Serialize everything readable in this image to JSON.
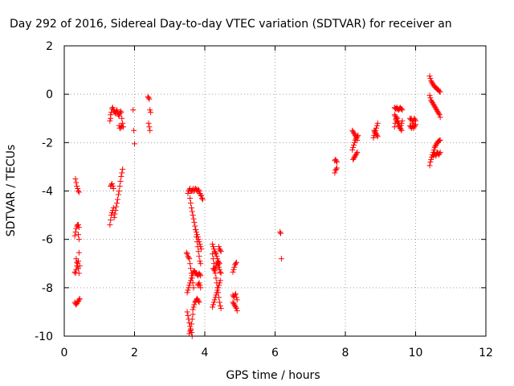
{
  "chart_data": {
    "type": "scatter",
    "title": "Day 292 of 2016, Sidereal Day-to-day VTEC variation (SDTVAR) for receiver an",
    "xlabel": "GPS time / hours",
    "ylabel": "SDTVAR / TECUs",
    "xlim": [
      0,
      12
    ],
    "ylim": [
      -10,
      2
    ],
    "xticks": [
      0,
      2,
      4,
      6,
      8,
      10,
      12
    ],
    "yticks": [
      -10,
      -8,
      -6,
      -4,
      -2,
      0,
      2
    ],
    "xtick_labels": [
      "0",
      "2",
      "4",
      "6",
      "8",
      "10",
      "12"
    ],
    "ytick_labels": [
      "-10",
      "-8",
      "-6",
      "-4",
      "-2",
      "0",
      "2"
    ],
    "grid": true,
    "marker": "plus",
    "color": "#ff0000",
    "segments": [
      {
        "x": [
          0.32,
          0.34,
          0.36,
          0.38,
          0.4,
          0.42
        ],
        "y": [
          -3.5,
          -3.65,
          -3.8,
          -3.9,
          -4.0,
          -4.05
        ]
      },
      {
        "x": [
          0.3,
          0.32,
          0.34,
          0.36,
          0.38,
          0.4,
          0.42
        ],
        "y": [
          -5.85,
          -5.7,
          -5.55,
          -5.45,
          -5.4,
          -5.4,
          -5.5
        ]
      },
      {
        "x": [
          0.4,
          0.42
        ],
        "y": [
          -5.8,
          -6.0
        ]
      },
      {
        "x": [
          0.34,
          0.36,
          0.38,
          0.4,
          0.42
        ],
        "y": [
          -6.8,
          -6.95,
          -7.1,
          -6.9,
          -6.55
        ]
      },
      {
        "x": [
          0.3,
          0.32,
          0.34,
          0.36,
          0.38,
          0.4,
          0.42,
          0.44
        ],
        "y": [
          -7.35,
          -7.4,
          -7.25,
          -7.1,
          -7.0,
          -7.2,
          -7.4,
          -7.1
        ]
      },
      {
        "x": [
          0.3,
          0.32,
          0.34,
          0.36,
          0.38,
          0.4,
          0.42,
          0.44
        ],
        "y": [
          -8.6,
          -8.65,
          -8.7,
          -8.65,
          -8.6,
          -8.55,
          -8.5,
          -8.45
        ]
      },
      {
        "x": [
          1.32,
          1.34,
          1.36,
          1.38,
          1.4,
          1.42,
          1.44,
          1.46,
          1.48,
          1.5,
          1.52,
          1.54,
          1.56,
          1.58,
          1.6,
          1.62,
          1.64,
          1.66,
          1.68
        ],
        "y": [
          -0.85,
          -0.75,
          -0.6,
          -0.55,
          -0.65,
          -0.7,
          -0.75,
          -0.8,
          -0.7,
          -0.65,
          -0.75,
          -0.85,
          -0.9,
          -0.8,
          -0.7,
          -0.75,
          -1.0,
          -1.2,
          -1.35
        ]
      },
      {
        "x": [
          1.3,
          1.32,
          1.56,
          1.58,
          1.6,
          1.62,
          1.64
        ],
        "y": [
          -1.1,
          -1.0,
          -1.3,
          -1.4,
          -1.4,
          -1.3,
          -1.35
        ]
      },
      {
        "x": [
          1.3,
          1.32,
          1.34,
          1.36,
          1.38,
          1.4
        ],
        "y": [
          -5.4,
          -5.2,
          -5.0,
          -4.9,
          -4.8,
          -4.7
        ]
      },
      {
        "x": [
          1.32,
          1.34,
          1.36,
          1.38,
          1.4
        ],
        "y": [
          -3.8,
          -3.75,
          -3.7,
          -3.8,
          -3.9
        ]
      },
      {
        "x": [
          1.42,
          1.44,
          1.46,
          1.48,
          1.5,
          1.52,
          1.54,
          1.56,
          1.58,
          1.6,
          1.62,
          1.64,
          1.66
        ],
        "y": [
          -5.1,
          -4.95,
          -4.8,
          -4.65,
          -4.5,
          -4.35,
          -4.15,
          -4.0,
          -3.8,
          -3.6,
          -3.4,
          -3.25,
          -3.1
        ]
      },
      {
        "x": [
          1.96,
          1.98,
          2.0
        ],
        "y": [
          -0.65,
          -1.5,
          -2.05
        ]
      },
      {
        "x": [
          2.38,
          2.4,
          2.42,
          2.44,
          2.46
        ],
        "y": [
          -0.1,
          -0.15,
          -0.2,
          -0.65,
          -0.75
        ]
      },
      {
        "x": [
          2.4,
          2.42,
          2.44
        ],
        "y": [
          -1.2,
          -1.35,
          -1.5
        ]
      },
      {
        "x": [
          3.52,
          3.54,
          3.56,
          3.58,
          3.6,
          3.62,
          3.64,
          3.66,
          3.68,
          3.7,
          3.72,
          3.74,
          3.76,
          3.78,
          3.8,
          3.82,
          3.84,
          3.86,
          3.88,
          3.9,
          3.92,
          3.94
        ],
        "y": [
          -4.1,
          -4.0,
          -3.95,
          -3.9,
          -4.0,
          -4.0,
          -3.95,
          -4.0,
          -3.9,
          -4.0,
          -3.95,
          -3.9,
          -3.95,
          -4.0,
          -3.95,
          -3.95,
          -4.0,
          -4.1,
          -4.15,
          -4.2,
          -4.3,
          -4.35
        ]
      },
      {
        "x": [
          3.58,
          3.6,
          3.62,
          3.64,
          3.66,
          3.68,
          3.7,
          3.72,
          3.74,
          3.76,
          3.78,
          3.8,
          3.82,
          3.84,
          3.86,
          3.88,
          3.9
        ],
        "y": [
          -4.3,
          -4.5,
          -4.7,
          -4.85,
          -5.0,
          -5.15,
          -5.3,
          -5.45,
          -5.6,
          -5.7,
          -5.8,
          -5.9,
          -6.0,
          -6.1,
          -6.2,
          -6.3,
          -6.4
        ]
      },
      {
        "x": [
          3.74,
          3.76,
          3.78,
          3.8,
          3.82,
          3.84,
          3.86,
          3.88
        ],
        "y": [
          -5.6,
          -5.9,
          -6.1,
          -6.3,
          -6.5,
          -6.7,
          -6.9,
          -7.0
        ]
      },
      {
        "x": [
          3.48,
          3.5,
          3.52,
          3.54,
          3.56,
          3.58,
          3.6,
          3.62,
          3.64,
          3.66,
          3.68
        ],
        "y": [
          -6.55,
          -6.6,
          -6.7,
          -6.75,
          -6.8,
          -7.0,
          -7.2,
          -7.4,
          -7.6,
          -7.8,
          -8.0
        ]
      },
      {
        "x": [
          3.5,
          3.52,
          3.54,
          3.56,
          3.58,
          3.6,
          3.62,
          3.64,
          3.66,
          3.68,
          3.7
        ],
        "y": [
          -8.2,
          -8.1,
          -8.0,
          -7.9,
          -7.8,
          -7.7,
          -7.6,
          -7.5,
          -7.4,
          -7.35,
          -7.3
        ]
      },
      {
        "x": [
          3.7,
          3.72,
          3.74,
          3.76,
          3.78,
          3.8,
          3.82,
          3.84,
          3.86,
          3.88
        ],
        "y": [
          -7.3,
          -7.35,
          -7.4,
          -7.4,
          -7.45,
          -7.5,
          -7.45,
          -7.4,
          -7.45,
          -7.5
        ]
      },
      {
        "x": [
          3.8,
          3.82,
          3.84,
          3.86,
          3.88
        ],
        "y": [
          -7.9,
          -7.85,
          -7.8,
          -7.9,
          -8.0
        ]
      },
      {
        "x": [
          3.5,
          3.52,
          3.54,
          3.56,
          3.58,
          3.6,
          3.62,
          3.64
        ],
        "y": [
          -9.0,
          -9.15,
          -9.3,
          -9.45,
          -9.6,
          -9.75,
          -9.85,
          -10.0
        ]
      },
      {
        "x": [
          3.56,
          3.58,
          3.6,
          3.62,
          3.64,
          3.66
        ],
        "y": [
          -9.9,
          -9.8,
          -9.7,
          -9.5,
          -9.3,
          -9.1
        ]
      },
      {
        "x": [
          3.66,
          3.68,
          3.7,
          3.72,
          3.74,
          3.76,
          3.78,
          3.8,
          3.82,
          3.84
        ],
        "y": [
          -8.9,
          -8.8,
          -8.7,
          -8.6,
          -8.55,
          -8.5,
          -8.45,
          -8.5,
          -8.55,
          -8.6
        ]
      },
      {
        "x": [
          4.22,
          4.24,
          4.26,
          4.28,
          4.3,
          4.32,
          4.34,
          4.36,
          4.38,
          4.4,
          4.42
        ],
        "y": [
          -6.2,
          -6.3,
          -6.4,
          -6.5,
          -6.55,
          -6.6,
          -6.7,
          -6.8,
          -6.9,
          -6.95,
          -7.0
        ]
      },
      {
        "x": [
          4.22,
          4.24,
          4.26,
          4.28,
          4.3,
          4.32,
          4.34,
          4.36,
          4.38,
          4.4,
          4.42,
          4.44,
          4.46
        ],
        "y": [
          -6.6,
          -6.8,
          -7.0,
          -7.2,
          -7.4,
          -7.6,
          -7.8,
          -8.0,
          -8.2,
          -8.4,
          -8.6,
          -8.75,
          -8.85
        ]
      },
      {
        "x": [
          4.22,
          4.24,
          4.26,
          4.28,
          4.3,
          4.32,
          4.34,
          4.36,
          4.38,
          4.4,
          4.42,
          4.44
        ],
        "y": [
          -8.8,
          -8.7,
          -8.6,
          -8.5,
          -8.4,
          -8.3,
          -8.2,
          -8.1,
          -8.0,
          -7.9,
          -7.8,
          -7.7
        ]
      },
      {
        "x": [
          4.24,
          4.26,
          4.28,
          4.3,
          4.32,
          4.34,
          4.36,
          4.38,
          4.4,
          4.42,
          4.44,
          4.46
        ],
        "y": [
          -7.2,
          -7.25,
          -7.3,
          -7.2,
          -7.1,
          -7.0,
          -6.95,
          -7.05,
          -7.15,
          -7.25,
          -7.35,
          -7.4
        ]
      },
      {
        "x": [
          4.4,
          4.42,
          4.44,
          4.46
        ],
        "y": [
          -6.3,
          -6.4,
          -6.45,
          -6.5
        ]
      },
      {
        "x": [
          4.8,
          4.82,
          4.84,
          4.86,
          4.88,
          4.9
        ],
        "y": [
          -7.35,
          -7.25,
          -7.15,
          -7.05,
          -7.0,
          -6.95
        ]
      },
      {
        "x": [
          4.8,
          4.82,
          4.84,
          4.86,
          4.88,
          4.9,
          4.92
        ],
        "y": [
          -8.3,
          -8.35,
          -8.4,
          -8.3,
          -8.25,
          -8.4,
          -8.5
        ]
      },
      {
        "x": [
          4.8,
          4.82,
          4.84,
          4.86,
          4.88,
          4.9,
          4.92
        ],
        "y": [
          -8.6,
          -8.65,
          -8.7,
          -8.75,
          -8.8,
          -8.85,
          -8.95
        ]
      },
      {
        "x": [
          6.14,
          6.16,
          6.18
        ],
        "y": [
          -5.7,
          -5.75,
          -6.8
        ]
      },
      {
        "x": [
          7.7,
          7.72,
          7.74,
          7.76
        ],
        "y": [
          -2.75,
          -2.7,
          -2.75,
          -2.8
        ]
      },
      {
        "x": [
          7.7,
          7.72,
          7.74,
          7.76
        ],
        "y": [
          -3.25,
          -3.15,
          -3.1,
          -3.05
        ]
      },
      {
        "x": [
          8.2,
          8.22,
          8.24,
          8.26,
          8.28,
          8.3,
          8.32,
          8.34
        ],
        "y": [
          -1.5,
          -1.55,
          -1.6,
          -1.65,
          -1.7,
          -1.75,
          -1.8,
          -1.9
        ]
      },
      {
        "x": [
          8.2,
          8.22,
          8.24,
          8.26,
          8.28,
          8.3,
          8.32,
          8.34,
          8.36
        ],
        "y": [
          -2.3,
          -2.2,
          -2.1,
          -2.0,
          -1.9,
          -1.85,
          -1.8,
          -1.75,
          -1.7
        ]
      },
      {
        "x": [
          8.22,
          8.24,
          8.26,
          8.28,
          8.3,
          8.32,
          8.34
        ],
        "y": [
          -2.7,
          -2.65,
          -2.6,
          -2.55,
          -2.5,
          -2.45,
          -2.4
        ]
      },
      {
        "x": [
          8.8,
          8.82,
          8.84,
          8.86,
          8.88,
          8.9,
          8.92
        ],
        "y": [
          -1.8,
          -1.7,
          -1.6,
          -1.5,
          -1.4,
          -1.3,
          -1.2
        ]
      },
      {
        "x": [
          8.82,
          8.84,
          8.86,
          8.88,
          8.9,
          8.92
        ],
        "y": [
          -1.5,
          -1.55,
          -1.6,
          -1.65,
          -1.7,
          -1.75
        ]
      },
      {
        "x": [
          9.4,
          9.42,
          9.44,
          9.46,
          9.48,
          9.5,
          9.52,
          9.54,
          9.56,
          9.58,
          9.6,
          9.62
        ],
        "y": [
          -0.55,
          -0.6,
          -0.6,
          -0.55,
          -0.6,
          -0.6,
          -0.65,
          -0.6,
          -0.55,
          -0.6,
          -0.6,
          -0.65
        ]
      },
      {
        "x": [
          9.4,
          9.42,
          9.44,
          9.46,
          9.48,
          9.5,
          9.52,
          9.54,
          9.56,
          9.58,
          9.6,
          9.62
        ],
        "y": [
          -1.35,
          -1.2,
          -1.05,
          -0.95,
          -1.0,
          -1.1,
          -1.2,
          -1.3,
          -1.4,
          -1.3,
          -1.2,
          -1.1
        ]
      },
      {
        "x": [
          9.4,
          9.42,
          9.44,
          9.46,
          9.48,
          9.5,
          9.52,
          9.54,
          9.56,
          9.58,
          9.6
        ],
        "y": [
          -0.85,
          -0.9,
          -1.0,
          -1.1,
          -1.15,
          -1.2,
          -1.3,
          -1.35,
          -1.4,
          -1.45,
          -1.5
        ]
      },
      {
        "x": [
          9.84,
          9.86,
          9.88,
          9.9,
          9.92,
          9.94,
          9.96,
          9.98,
          10.0
        ],
        "y": [
          -1.0,
          -1.05,
          -1.0,
          -1.1,
          -1.2,
          -1.1,
          -1.0,
          -1.05,
          -1.1
        ]
      },
      {
        "x": [
          9.84,
          9.86,
          9.88,
          9.9,
          9.92,
          9.94,
          9.96,
          9.98,
          10.0
        ],
        "y": [
          -1.3,
          -1.35,
          -1.4,
          -1.35,
          -1.3,
          -1.4,
          -1.35,
          -1.3,
          -1.25
        ]
      },
      {
        "x": [
          10.4,
          10.42,
          10.44,
          10.46,
          10.48,
          10.5,
          10.52,
          10.54,
          10.56,
          10.58,
          10.6,
          10.62,
          10.64,
          10.66,
          10.68,
          10.7
        ],
        "y": [
          0.75,
          0.65,
          0.55,
          0.5,
          0.45,
          0.4,
          0.35,
          0.3,
          0.3,
          0.25,
          0.25,
          0.2,
          0.2,
          0.15,
          0.1,
          0.1
        ]
      },
      {
        "x": [
          10.4,
          10.42,
          10.44,
          10.46,
          10.48,
          10.5,
          10.52,
          10.54,
          10.56,
          10.58,
          10.6,
          10.62,
          10.64,
          10.66,
          10.68,
          10.7
        ],
        "y": [
          -0.05,
          -0.15,
          -0.25,
          -0.3,
          -0.35,
          -0.4,
          -0.45,
          -0.5,
          -0.55,
          -0.6,
          -0.65,
          -0.7,
          -0.75,
          -0.8,
          -0.85,
          -0.95
        ]
      },
      {
        "x": [
          10.4,
          10.42,
          10.44,
          10.46,
          10.48,
          10.5,
          10.52,
          10.54,
          10.56,
          10.58,
          10.6,
          10.62,
          10.64,
          10.66,
          10.68,
          10.7
        ],
        "y": [
          -2.95,
          -2.8,
          -2.7,
          -2.6,
          -2.5,
          -2.4,
          -2.3,
          -2.2,
          -2.15,
          -2.1,
          -2.05,
          -2.0,
          -1.95,
          -1.95,
          -1.9,
          -1.9
        ]
      },
      {
        "x": [
          10.5,
          10.52,
          10.54,
          10.56,
          10.58,
          10.6,
          10.62,
          10.64,
          10.66,
          10.68,
          10.7
        ],
        "y": [
          -2.55,
          -2.5,
          -2.45,
          -2.5,
          -2.55,
          -2.45,
          -2.4,
          -2.45,
          -2.5,
          -2.45,
          -2.4
        ]
      }
    ]
  }
}
